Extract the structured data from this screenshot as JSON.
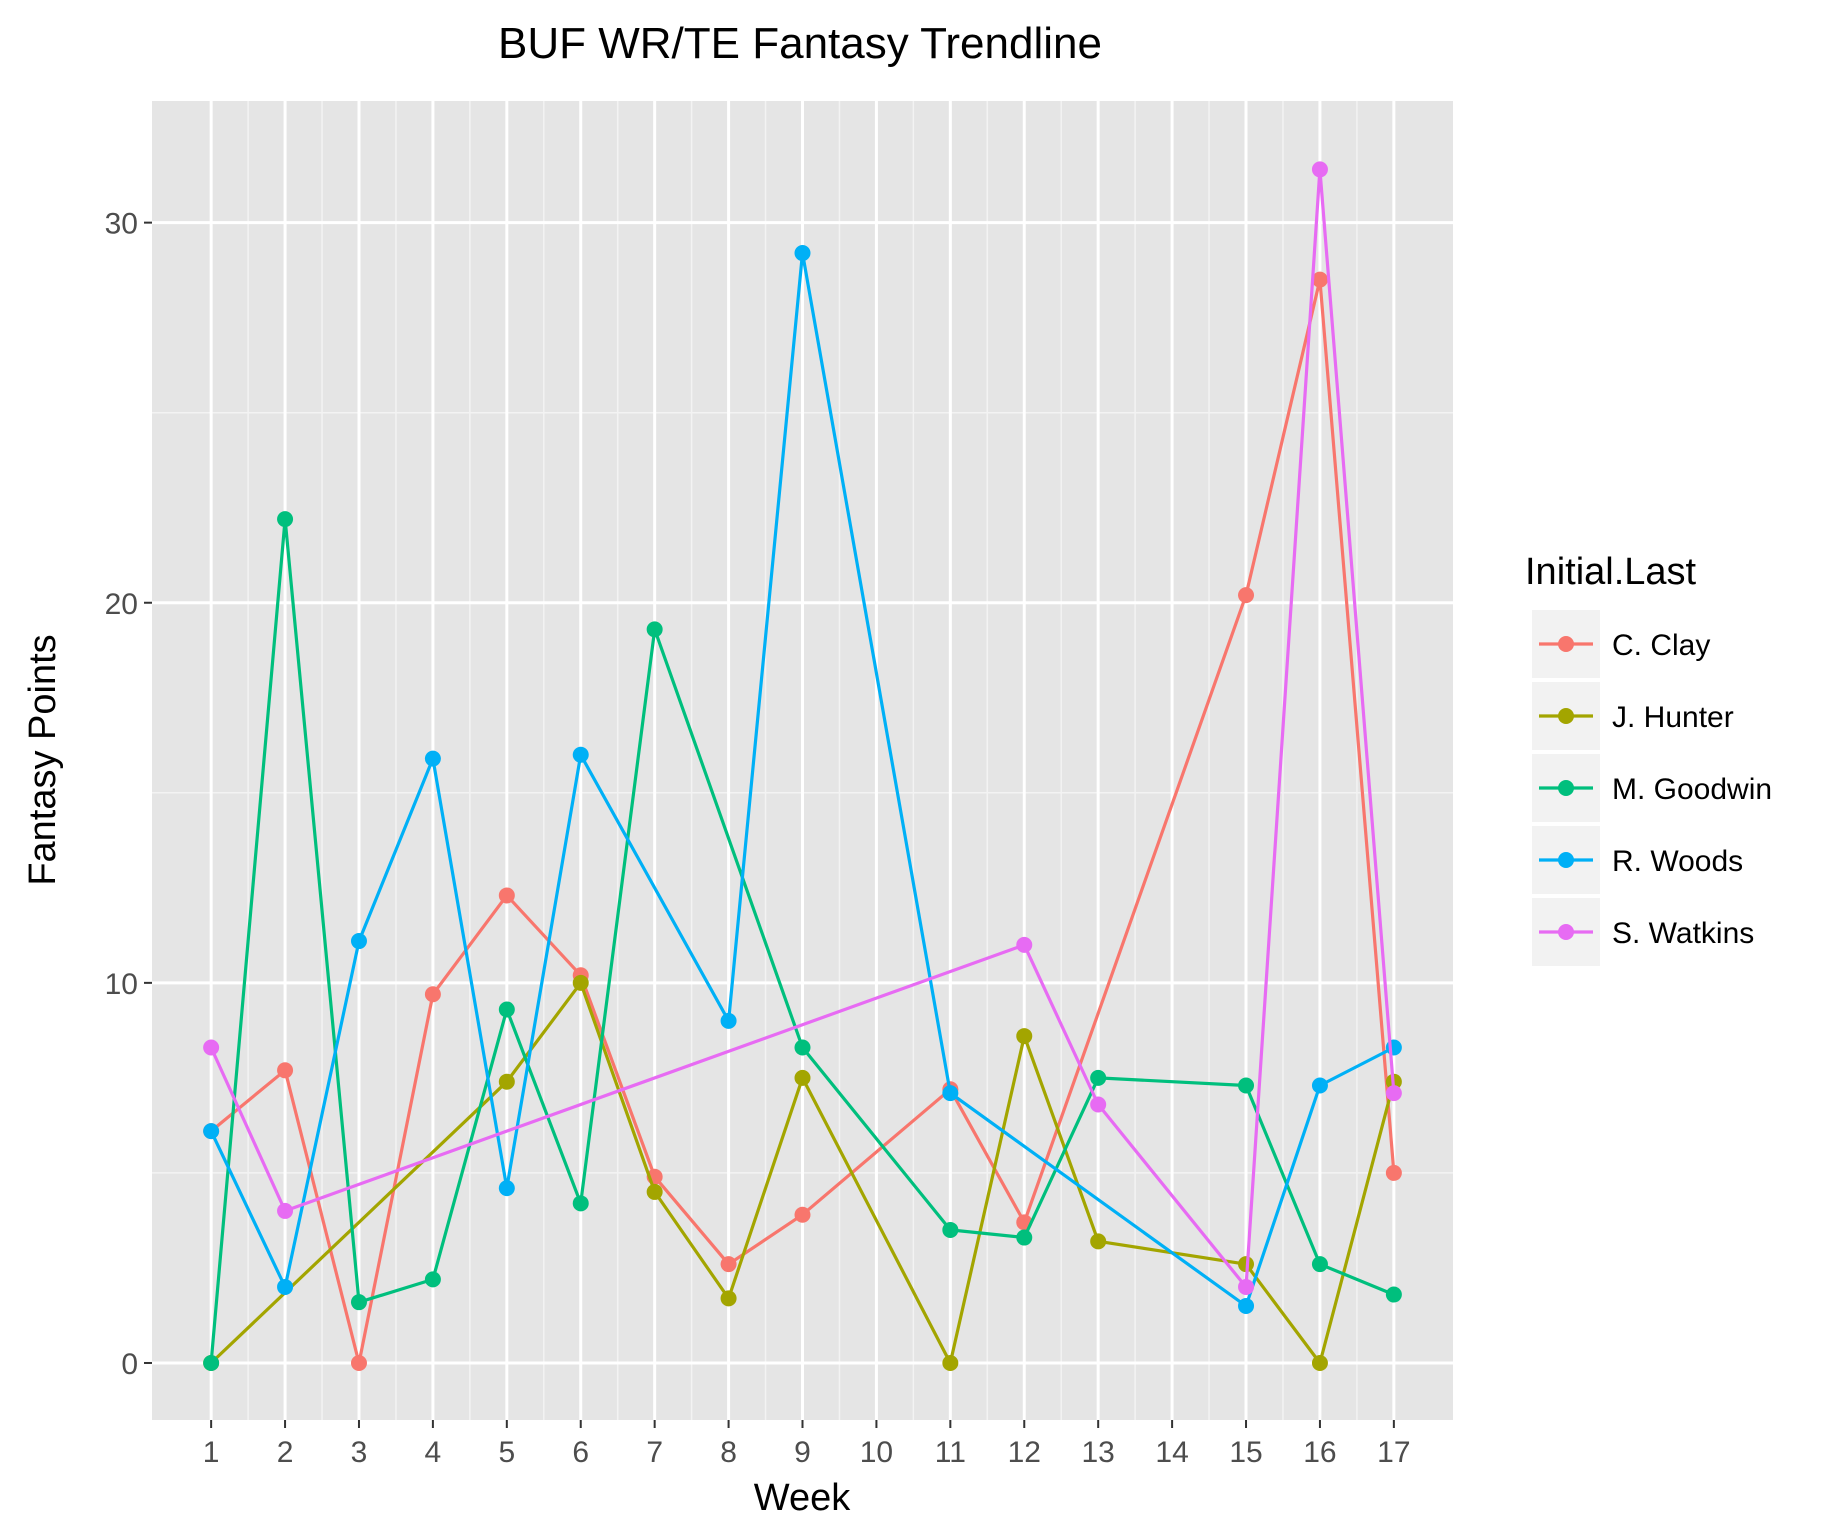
{
  "chart_data": {
    "type": "line",
    "title": "BUF WR/TE Fantasy Trendline",
    "xlabel": "Week",
    "ylabel": "Fantasy Points",
    "x_ticks": [
      "1",
      "2",
      "3",
      "4",
      "5",
      "6",
      "7",
      "8",
      "9",
      "10",
      "11",
      "12",
      "13",
      "14",
      "15",
      "16",
      "17"
    ],
    "y_ticks": [
      "0",
      "10",
      "20",
      "30"
    ],
    "xlim": [
      0.2,
      17.8
    ],
    "ylim": [
      -1.5,
      33.2
    ],
    "grid": true,
    "background": "#e5e5e5",
    "legend": {
      "title": "Initial.Last",
      "position": "right"
    },
    "series": [
      {
        "name": "C. Clay",
        "color": "#F8766D",
        "points": [
          [
            1,
            6.1
          ],
          [
            2,
            7.7
          ],
          [
            3,
            0
          ],
          [
            4,
            9.7
          ],
          [
            5,
            12.3
          ],
          [
            6,
            10.2
          ],
          [
            7,
            4.9
          ],
          [
            8,
            2.6
          ],
          [
            9,
            3.9
          ],
          [
            11,
            7.2
          ],
          [
            12,
            3.7
          ],
          [
            15,
            20.2
          ],
          [
            16,
            28.5
          ],
          [
            17,
            5.0
          ]
        ]
      },
      {
        "name": "J. Hunter",
        "color": "#A3A500",
        "points": [
          [
            1,
            0
          ],
          [
            5,
            7.4
          ],
          [
            6,
            10.0
          ],
          [
            7,
            4.5
          ],
          [
            8,
            1.7
          ],
          [
            9,
            7.5
          ],
          [
            11,
            0
          ],
          [
            12,
            8.6
          ],
          [
            13,
            3.2
          ],
          [
            15,
            2.6
          ],
          [
            16,
            0
          ],
          [
            17,
            7.4
          ]
        ]
      },
      {
        "name": "M. Goodwin",
        "color": "#00BF7D",
        "points": [
          [
            1,
            0
          ],
          [
            2,
            22.2
          ],
          [
            3,
            1.6
          ],
          [
            4,
            2.2
          ],
          [
            5,
            9.3
          ],
          [
            6,
            4.2
          ],
          [
            7,
            19.3
          ],
          [
            9,
            8.3
          ],
          [
            11,
            3.5
          ],
          [
            12,
            3.3
          ],
          [
            13,
            7.5
          ],
          [
            15,
            7.3
          ],
          [
            16,
            2.6
          ],
          [
            17,
            1.8
          ]
        ]
      },
      {
        "name": "R. Woods",
        "color": "#00B0F6",
        "points": [
          [
            1,
            6.1
          ],
          [
            2,
            2.0
          ],
          [
            3,
            11.1
          ],
          [
            4,
            15.9
          ],
          [
            5,
            4.6
          ],
          [
            6,
            16.0
          ],
          [
            8,
            9.0
          ],
          [
            9,
            29.2
          ],
          [
            11,
            7.1
          ],
          [
            15,
            1.5
          ],
          [
            16,
            7.3
          ],
          [
            17,
            8.3
          ]
        ]
      },
      {
        "name": "S. Watkins",
        "color": "#E76BF3",
        "points": [
          [
            1,
            8.3
          ],
          [
            2,
            4.0
          ],
          [
            12,
            11.0
          ],
          [
            13,
            6.8
          ],
          [
            15,
            2.0
          ],
          [
            16,
            31.4
          ],
          [
            17,
            7.1
          ]
        ]
      }
    ]
  }
}
